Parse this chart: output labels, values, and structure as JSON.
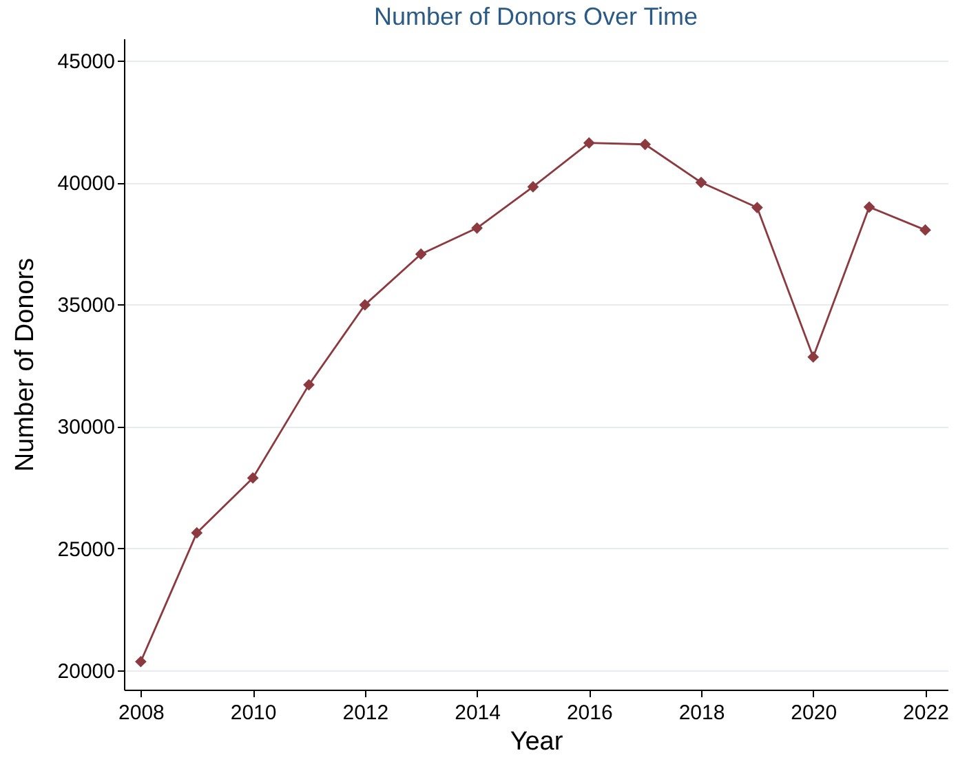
{
  "chart_data": {
    "type": "line",
    "title": "Number of Donors Over Time",
    "xlabel": "Year",
    "ylabel": "Number of Donors",
    "x": [
      2008,
      2009,
      2010,
      2011,
      2012,
      2013,
      2014,
      2015,
      2016,
      2017,
      2018,
      2019,
      2020,
      2021,
      2022
    ],
    "series": [
      {
        "color": "#8c3a3f",
        "values": [
          20350,
          25630,
          27880,
          31700,
          34980,
          37060,
          38130,
          39820,
          41620,
          41560,
          40000,
          38970,
          32840,
          38990,
          38050
        ]
      }
    ],
    "xlim": [
      2007.7,
      2022.4
    ],
    "xticks": [
      2008,
      2010,
      2012,
      2014,
      2016,
      2018,
      2020,
      2022
    ],
    "ylim": [
      19200,
      45900
    ],
    "yticks": [
      20000,
      25000,
      30000,
      35000,
      40000,
      45000
    ],
    "grid": "y",
    "marker": "diamond",
    "line_style": "solid"
  }
}
